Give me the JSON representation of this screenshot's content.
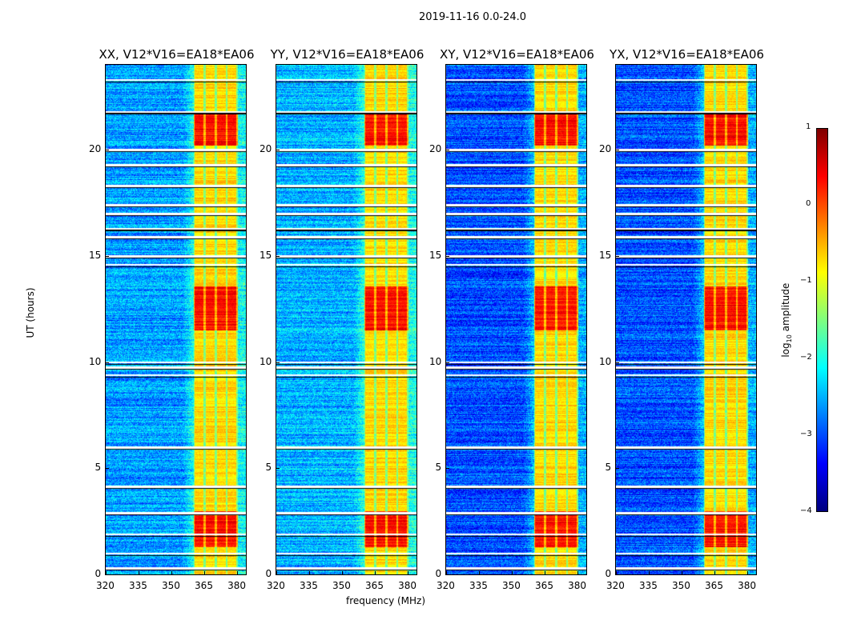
{
  "suptitle": "2019-11-16 0.0-24.0",
  "chart_data": {
    "type": "heatmap",
    "xlabel": "frequency (MHz)",
    "ylabel": "UT (hours)",
    "xlim": [
      320,
      384
    ],
    "ylim": [
      0,
      24
    ],
    "xticks": [
      "320",
      "335",
      "350",
      "365",
      "380"
    ],
    "xtick_values": [
      320,
      335,
      350,
      365,
      380
    ],
    "yticks": [
      "0",
      "5",
      "10",
      "15",
      "20"
    ],
    "ytick_values": [
      0,
      5,
      10,
      15,
      20
    ],
    "panels": [
      {
        "title": "XX, V12*V16=EA18*EA06",
        "background_log_amp": -2.6
      },
      {
        "title": "YY, V12*V16=EA18*EA06",
        "background_log_amp": -2.5
      },
      {
        "title": "XY, V12*V16=EA18*EA06",
        "background_log_amp": -3.0
      },
      {
        "title": "YX, V12*V16=EA18*EA06",
        "background_log_amp": -3.0
      }
    ],
    "bright_band_mhz": [
      360,
      380
    ],
    "band_log_amp": -0.7,
    "strong_intervals_ut": [
      [
        1.3,
        3.0
      ],
      [
        11.5,
        13.6
      ],
      [
        20.2,
        21.7
      ]
    ],
    "strong_log_amp": 0.3,
    "flagged_ut": [
      0.3,
      1.0,
      1.9,
      2.9,
      4.15,
      6.0,
      9.4,
      9.75,
      10.0,
      14.6,
      15.0,
      15.9,
      16.3,
      17.0,
      17.4,
      18.3,
      19.3,
      20.0,
      21.8,
      23.3
    ],
    "colorbar": {
      "label": "log10 amplitude",
      "label_main": "log",
      "label_sub": "10",
      "label_rest": " amplitude",
      "range": [
        -4,
        1
      ],
      "ticks": [
        "−4",
        "−3",
        "−2",
        "−1",
        "0",
        "1"
      ],
      "tick_values": [
        -4,
        -3,
        -2,
        -1,
        0,
        1
      ],
      "colormap": "jet"
    }
  }
}
